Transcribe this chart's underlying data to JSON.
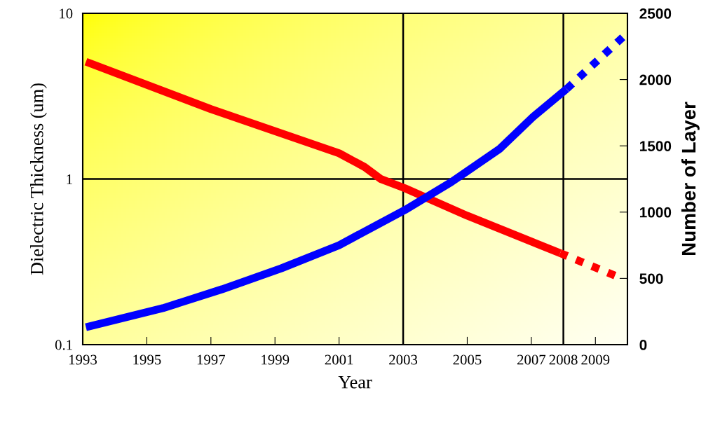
{
  "chart_data": {
    "type": "line",
    "xlabel": "Year",
    "ylabel": "Dielectric Thickness (um)",
    "y2label": "Number of Layer",
    "log": "y",
    "xlim": [
      1993,
      2010
    ],
    "xticks": [
      1993,
      1995,
      1997,
      1999,
      2001,
      2003,
      2005,
      2007,
      2008,
      2009
    ],
    "ylim": [
      0.1,
      10
    ],
    "yticks": [
      0.1,
      1,
      10
    ],
    "y2lim": [
      0,
      2500
    ],
    "y2ticks": [
      0,
      500,
      1000,
      1500,
      2000,
      2500
    ],
    "marker": "none",
    "ref_lines": [
      {
        "axis": "x",
        "value": 2003,
        "color": "#000000",
        "line_style": "solid"
      },
      {
        "axis": "x",
        "value": 2008,
        "color": "#000000",
        "line_style": "solid"
      },
      {
        "axis": "y",
        "value": 1,
        "color": "#000000",
        "line_style": "solid"
      }
    ],
    "series": [
      {
        "color": "#ff0000",
        "line_style": "solid",
        "x": [
          1993.1,
          1997,
          2001,
          2001.8,
          2002.3,
          2003.05,
          2005,
          2007.9
        ],
        "values": [
          5.1,
          2.64,
          1.43,
          1.18,
          1.0,
          0.88,
          0.6,
          0.357
        ]
      },
      {
        "color": "#ff0000",
        "line_style": "dashed",
        "x": [
          2007.9,
          2009.7
        ],
        "values": [
          0.357,
          0.257
        ]
      },
      {
        "color": "#0000ff",
        "line_style": "solid",
        "axis": "y2",
        "x": [
          1993.1,
          1995.5,
          1997.35,
          1999.2,
          2001,
          2002.1,
          2003.05,
          2004.5,
          2006,
          2007.05,
          2008.1
        ],
        "values": [
          132,
          275,
          418,
          576,
          750,
          893,
          1015,
          1226,
          1475,
          1718,
          1929
        ]
      },
      {
        "color": "#0000ff",
        "line_style": "dashed",
        "axis": "y2",
        "x": [
          2008.1,
          2010
        ],
        "values": [
          1929,
          2352
        ]
      }
    ]
  }
}
